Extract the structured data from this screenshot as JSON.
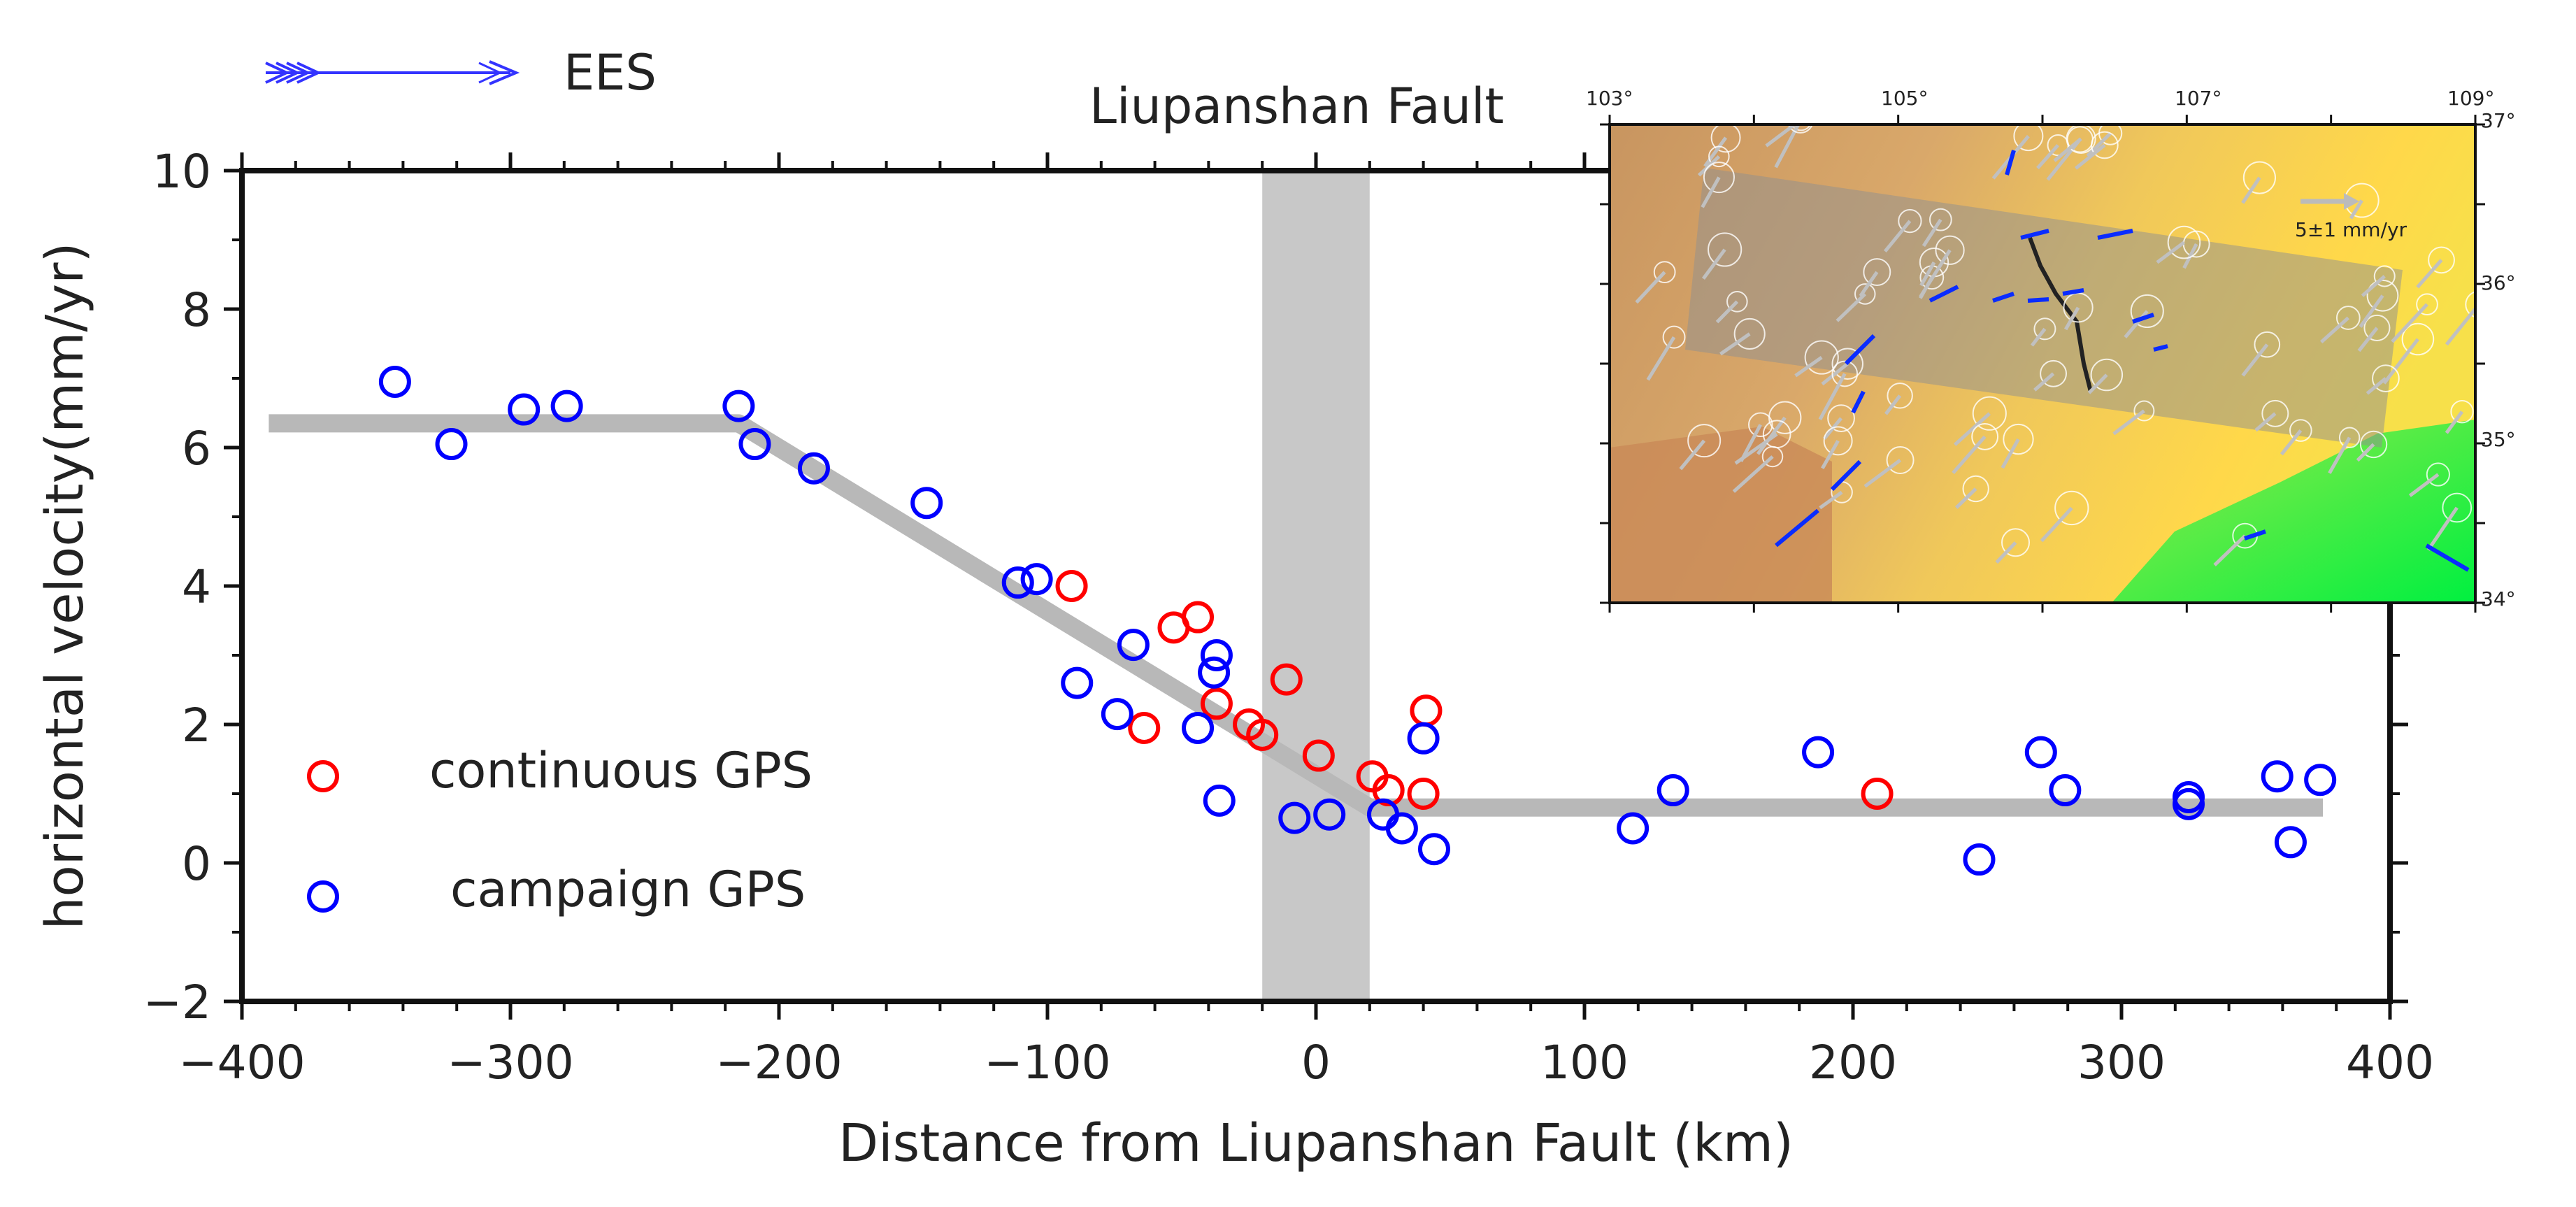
{
  "chart_data": {
    "type": "scatter",
    "title": "Liupanshan Fault",
    "xlabel": "Distance from Liupanshan Fault (km)",
    "ylabel": "horizontal velocity(mm/yr)",
    "xlim": [
      -400,
      400
    ],
    "ylim": [
      -2,
      10
    ],
    "x_ticks": [
      "−400",
      "−300",
      "−200",
      "−100",
      "0",
      "100",
      "200",
      "300",
      "400"
    ],
    "y_ticks": [
      "−2",
      "0",
      "2",
      "4",
      "6",
      "8",
      "10"
    ],
    "direction_label": "EES",
    "fault_zone": [
      -20,
      20
    ],
    "model_line": [
      {
        "x": -390,
        "y": 6.35
      },
      {
        "x": -215,
        "y": 6.35
      },
      {
        "x": 20,
        "y": 0.8
      },
      {
        "x": 375,
        "y": 0.8
      }
    ],
    "series": [
      {
        "name": "continuous GPS",
        "color": "#ff0000",
        "points": [
          {
            "x": -91,
            "y": 4.0
          },
          {
            "x": -53,
            "y": 3.4
          },
          {
            "x": -44,
            "y": 3.55
          },
          {
            "x": -37,
            "y": 2.3
          },
          {
            "x": -25,
            "y": 2.0
          },
          {
            "x": -20,
            "y": 1.85
          },
          {
            "x": -64,
            "y": 1.95
          },
          {
            "x": -11,
            "y": 2.65
          },
          {
            "x": 1,
            "y": 1.55
          },
          {
            "x": 21,
            "y": 1.25
          },
          {
            "x": 27,
            "y": 1.05
          },
          {
            "x": 40,
            "y": 1.0
          },
          {
            "x": 41,
            "y": 2.2
          },
          {
            "x": 209,
            "y": 1.0
          }
        ]
      },
      {
        "name": "campaign GPS",
        "color": "#0000ff",
        "points": [
          {
            "x": -343,
            "y": 6.95
          },
          {
            "x": -322,
            "y": 6.05
          },
          {
            "x": -295,
            "y": 6.55
          },
          {
            "x": -279,
            "y": 6.6
          },
          {
            "x": -215,
            "y": 6.6
          },
          {
            "x": -209,
            "y": 6.05
          },
          {
            "x": -187,
            "y": 5.7
          },
          {
            "x": -145,
            "y": 5.2
          },
          {
            "x": -111,
            "y": 4.05
          },
          {
            "x": -104,
            "y": 4.1
          },
          {
            "x": -89,
            "y": 2.6
          },
          {
            "x": -74,
            "y": 2.15
          },
          {
            "x": -68,
            "y": 3.15
          },
          {
            "x": -44,
            "y": 1.95
          },
          {
            "x": -38,
            "y": 2.75
          },
          {
            "x": -37,
            "y": 3.0
          },
          {
            "x": -36,
            "y": 0.9
          },
          {
            "x": -8,
            "y": 0.65
          },
          {
            "x": 5,
            "y": 0.7
          },
          {
            "x": 25,
            "y": 0.7
          },
          {
            "x": 32,
            "y": 0.5
          },
          {
            "x": 40,
            "y": 1.8
          },
          {
            "x": 44,
            "y": 0.2
          },
          {
            "x": 118,
            "y": 0.5
          },
          {
            "x": 133,
            "y": 1.05
          },
          {
            "x": 187,
            "y": 1.6
          },
          {
            "x": 247,
            "y": 0.05
          },
          {
            "x": 270,
            "y": 1.6
          },
          {
            "x": 279,
            "y": 1.05
          },
          {
            "x": 325,
            "y": 0.85
          },
          {
            "x": 325,
            "y": 0.95
          },
          {
            "x": 358,
            "y": 1.25
          },
          {
            "x": 363,
            "y": 0.3
          },
          {
            "x": 374,
            "y": 1.2
          }
        ]
      }
    ],
    "legend": [
      {
        "label": "continuous GPS",
        "color": "#ff0000"
      },
      {
        "label": "campaign GPS",
        "color": "#0000ff"
      }
    ],
    "grid": false,
    "legend_position": "lower-left"
  },
  "inset_map": {
    "lon_ticks": [
      "103°",
      "105°",
      "107°",
      "109°"
    ],
    "lat_ticks": [
      "37°",
      "36°",
      "35°",
      "34°"
    ],
    "scale_label": "5±1 mm/yr"
  },
  "colors": {
    "continuous": "#ff0000",
    "campaign": "#0000ff",
    "model": "#b8b8b8",
    "fault_zone": "#c8c8c8",
    "axis": "#111111"
  }
}
